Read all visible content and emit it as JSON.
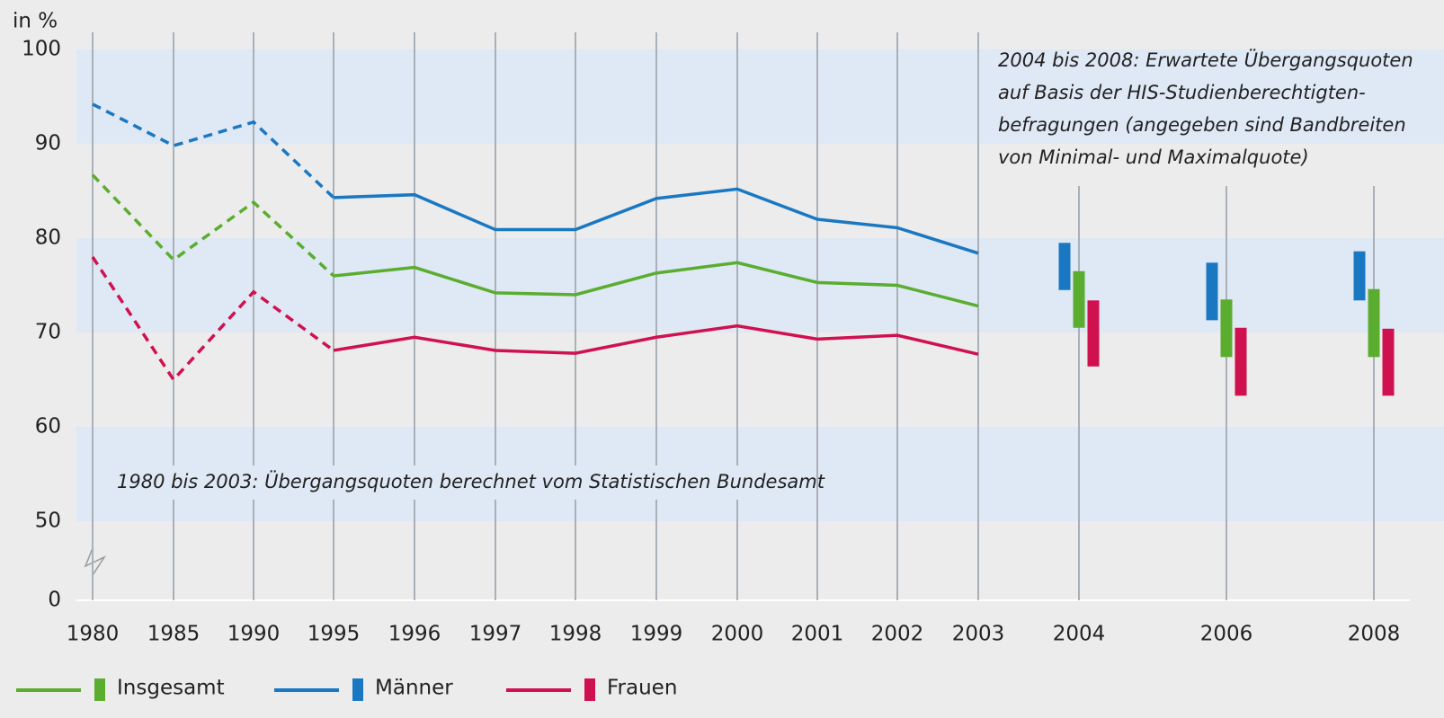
{
  "chart_data": {
    "type": "line_range",
    "y_label": "in %",
    "categories": [
      "1980",
      "1985",
      "1990",
      "1995",
      "1996",
      "1997",
      "1998",
      "1999",
      "2000",
      "2001",
      "2002",
      "2003"
    ],
    "range_categories": [
      "2004",
      "2006",
      "2008"
    ],
    "dashed_segments": 3,
    "ylim": [
      0,
      100
    ],
    "y_break": [
      0,
      50
    ],
    "yticks": [
      0,
      50,
      60,
      70,
      80,
      90,
      100
    ],
    "annotation_top": [
      "2004 bis 2008: Erwartete Übergangsquoten",
      "auf Basis der HIS-Studienberechtigten-",
      "befragungen (angegeben sind Bandbreiten",
      "von Minimal- und Maximalquote)"
    ],
    "annotation_bottom": "1980 bis 2003: Übergangsquoten berechnet vom Statistischen Bundesamt",
    "series": [
      {
        "name": "Insgesamt",
        "color": "#5aad2f",
        "values": [
          86.7,
          77.7,
          83.8,
          76,
          76.9,
          74.2,
          74,
          76.3,
          77.4,
          75.3,
          75,
          72.8
        ],
        "ranges": [
          [
            70.5,
            76.5
          ],
          [
            67.4,
            73.5
          ],
          [
            67.4,
            74.6
          ]
        ]
      },
      {
        "name": "Männer",
        "color": "#1a78c2",
        "values": [
          94.2,
          89.8,
          92.3,
          84.3,
          84.6,
          80.9,
          80.9,
          84.2,
          85.2,
          82,
          81.1,
          78.4
        ],
        "ranges": [
          [
            74.5,
            79.5
          ],
          [
            71.3,
            77.4
          ],
          [
            73.4,
            78.6
          ]
        ]
      },
      {
        "name": "Frauen",
        "color": "#d0114f",
        "values": [
          78,
          65,
          74.3,
          68.1,
          69.5,
          68.1,
          67.8,
          69.5,
          70.7,
          69.3,
          69.7,
          67.7
        ],
        "ranges": [
          [
            66.4,
            73.4
          ],
          [
            63.3,
            70.5
          ],
          [
            63.3,
            70.4
          ]
        ]
      }
    ]
  }
}
